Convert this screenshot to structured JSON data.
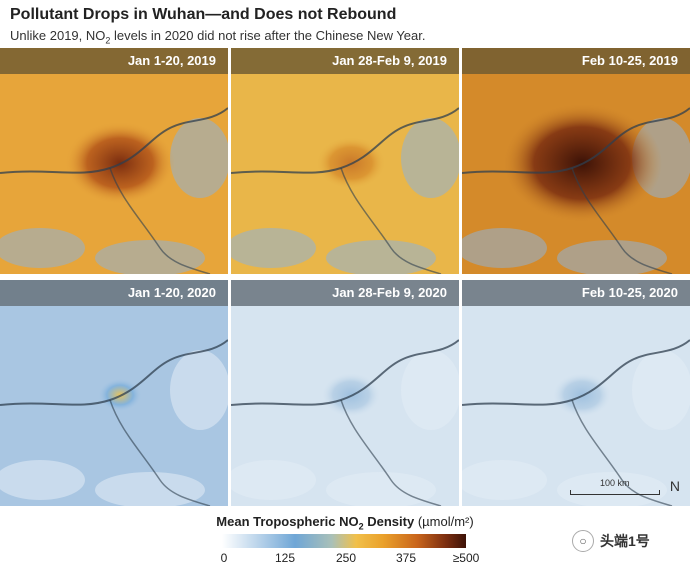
{
  "header": {
    "title": "Pollutant Drops in Wuhan—and Does not Rebound",
    "subtitle_pre": "Unlike 2019, NO",
    "subtitle_sub": "2",
    "subtitle_post": " levels in 2020 did not rise after the Chinese New Year."
  },
  "panels": [
    {
      "label": "Jan 1-20, 2019",
      "year": 2019,
      "pollution_level": "high"
    },
    {
      "label": "Jan 28-Feb 9, 2019",
      "year": 2019,
      "pollution_level": "moderate"
    },
    {
      "label": "Feb 10-25, 2019",
      "year": 2019,
      "pollution_level": "very high"
    },
    {
      "label": "Jan 1-20, 2020",
      "year": 2020,
      "pollution_level": "moderate-low"
    },
    {
      "label": "Jan 28-Feb 9, 2020",
      "year": 2020,
      "pollution_level": "low"
    },
    {
      "label": "Feb 10-25, 2020",
      "year": 2020,
      "pollution_level": "low"
    }
  ],
  "scale": {
    "distance": "100 km",
    "north_symbol": "N"
  },
  "legend": {
    "title_pre": "Mean Tropospheric NO",
    "title_sub": "2",
    "title_post": " Density ",
    "unit": "(µmol/m²)",
    "ticks": [
      "0",
      "125",
      "250",
      "375",
      "≥500"
    ],
    "tick_values": [
      0,
      125,
      250,
      375,
      500
    ],
    "colors": {
      "low": "#ffffff",
      "mid": "#f1c04a",
      "high": "#3c1207"
    }
  },
  "watermark": {
    "text": "头端1号"
  }
}
